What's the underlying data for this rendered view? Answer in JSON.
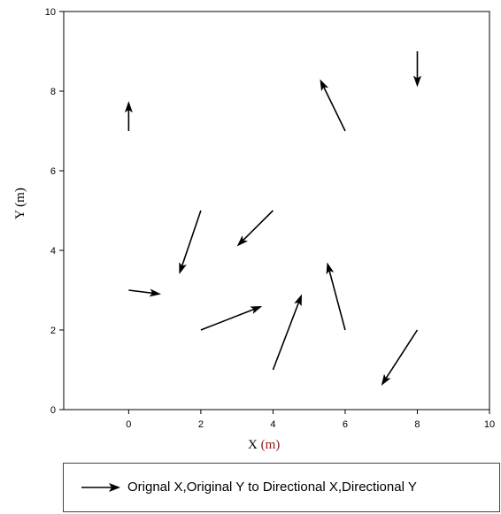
{
  "chart_data": {
    "type": "quiver",
    "xlabel_main": "X ",
    "xlabel_unit": "(m)",
    "ylabel": "Y (m)",
    "xlim": [
      -1.8,
      10
    ],
    "ylim": [
      0,
      10
    ],
    "xticks": [
      0,
      2,
      4,
      6,
      8,
      10
    ],
    "yticks": [
      0,
      2,
      4,
      6,
      8,
      10
    ],
    "grid": false,
    "legend_position": "bottom",
    "legend_label": "Orignal X,Original Y to Directional X,Directional Y",
    "arrows": [
      {
        "x": 0,
        "y": 7,
        "dx": 0,
        "dy": 0.75
      },
      {
        "x": 0,
        "y": 3,
        "dx": 0.9,
        "dy": -0.1
      },
      {
        "x": 2,
        "y": 5,
        "dx": -0.6,
        "dy": -1.6
      },
      {
        "x": 2,
        "y": 2,
        "dx": 1.7,
        "dy": 0.6
      },
      {
        "x": 4,
        "y": 5,
        "dx": -1.0,
        "dy": -0.9
      },
      {
        "x": 4,
        "y": 1,
        "dx": 0.8,
        "dy": 1.9
      },
      {
        "x": 6,
        "y": 7,
        "dx": -0.7,
        "dy": 1.3
      },
      {
        "x": 6,
        "y": 2,
        "dx": -0.5,
        "dy": 1.7
      },
      {
        "x": 8,
        "y": 9,
        "dx": 0,
        "dy": -0.9
      },
      {
        "x": 8,
        "y": 2,
        "dx": -1.0,
        "dy": -1.4
      }
    ]
  }
}
